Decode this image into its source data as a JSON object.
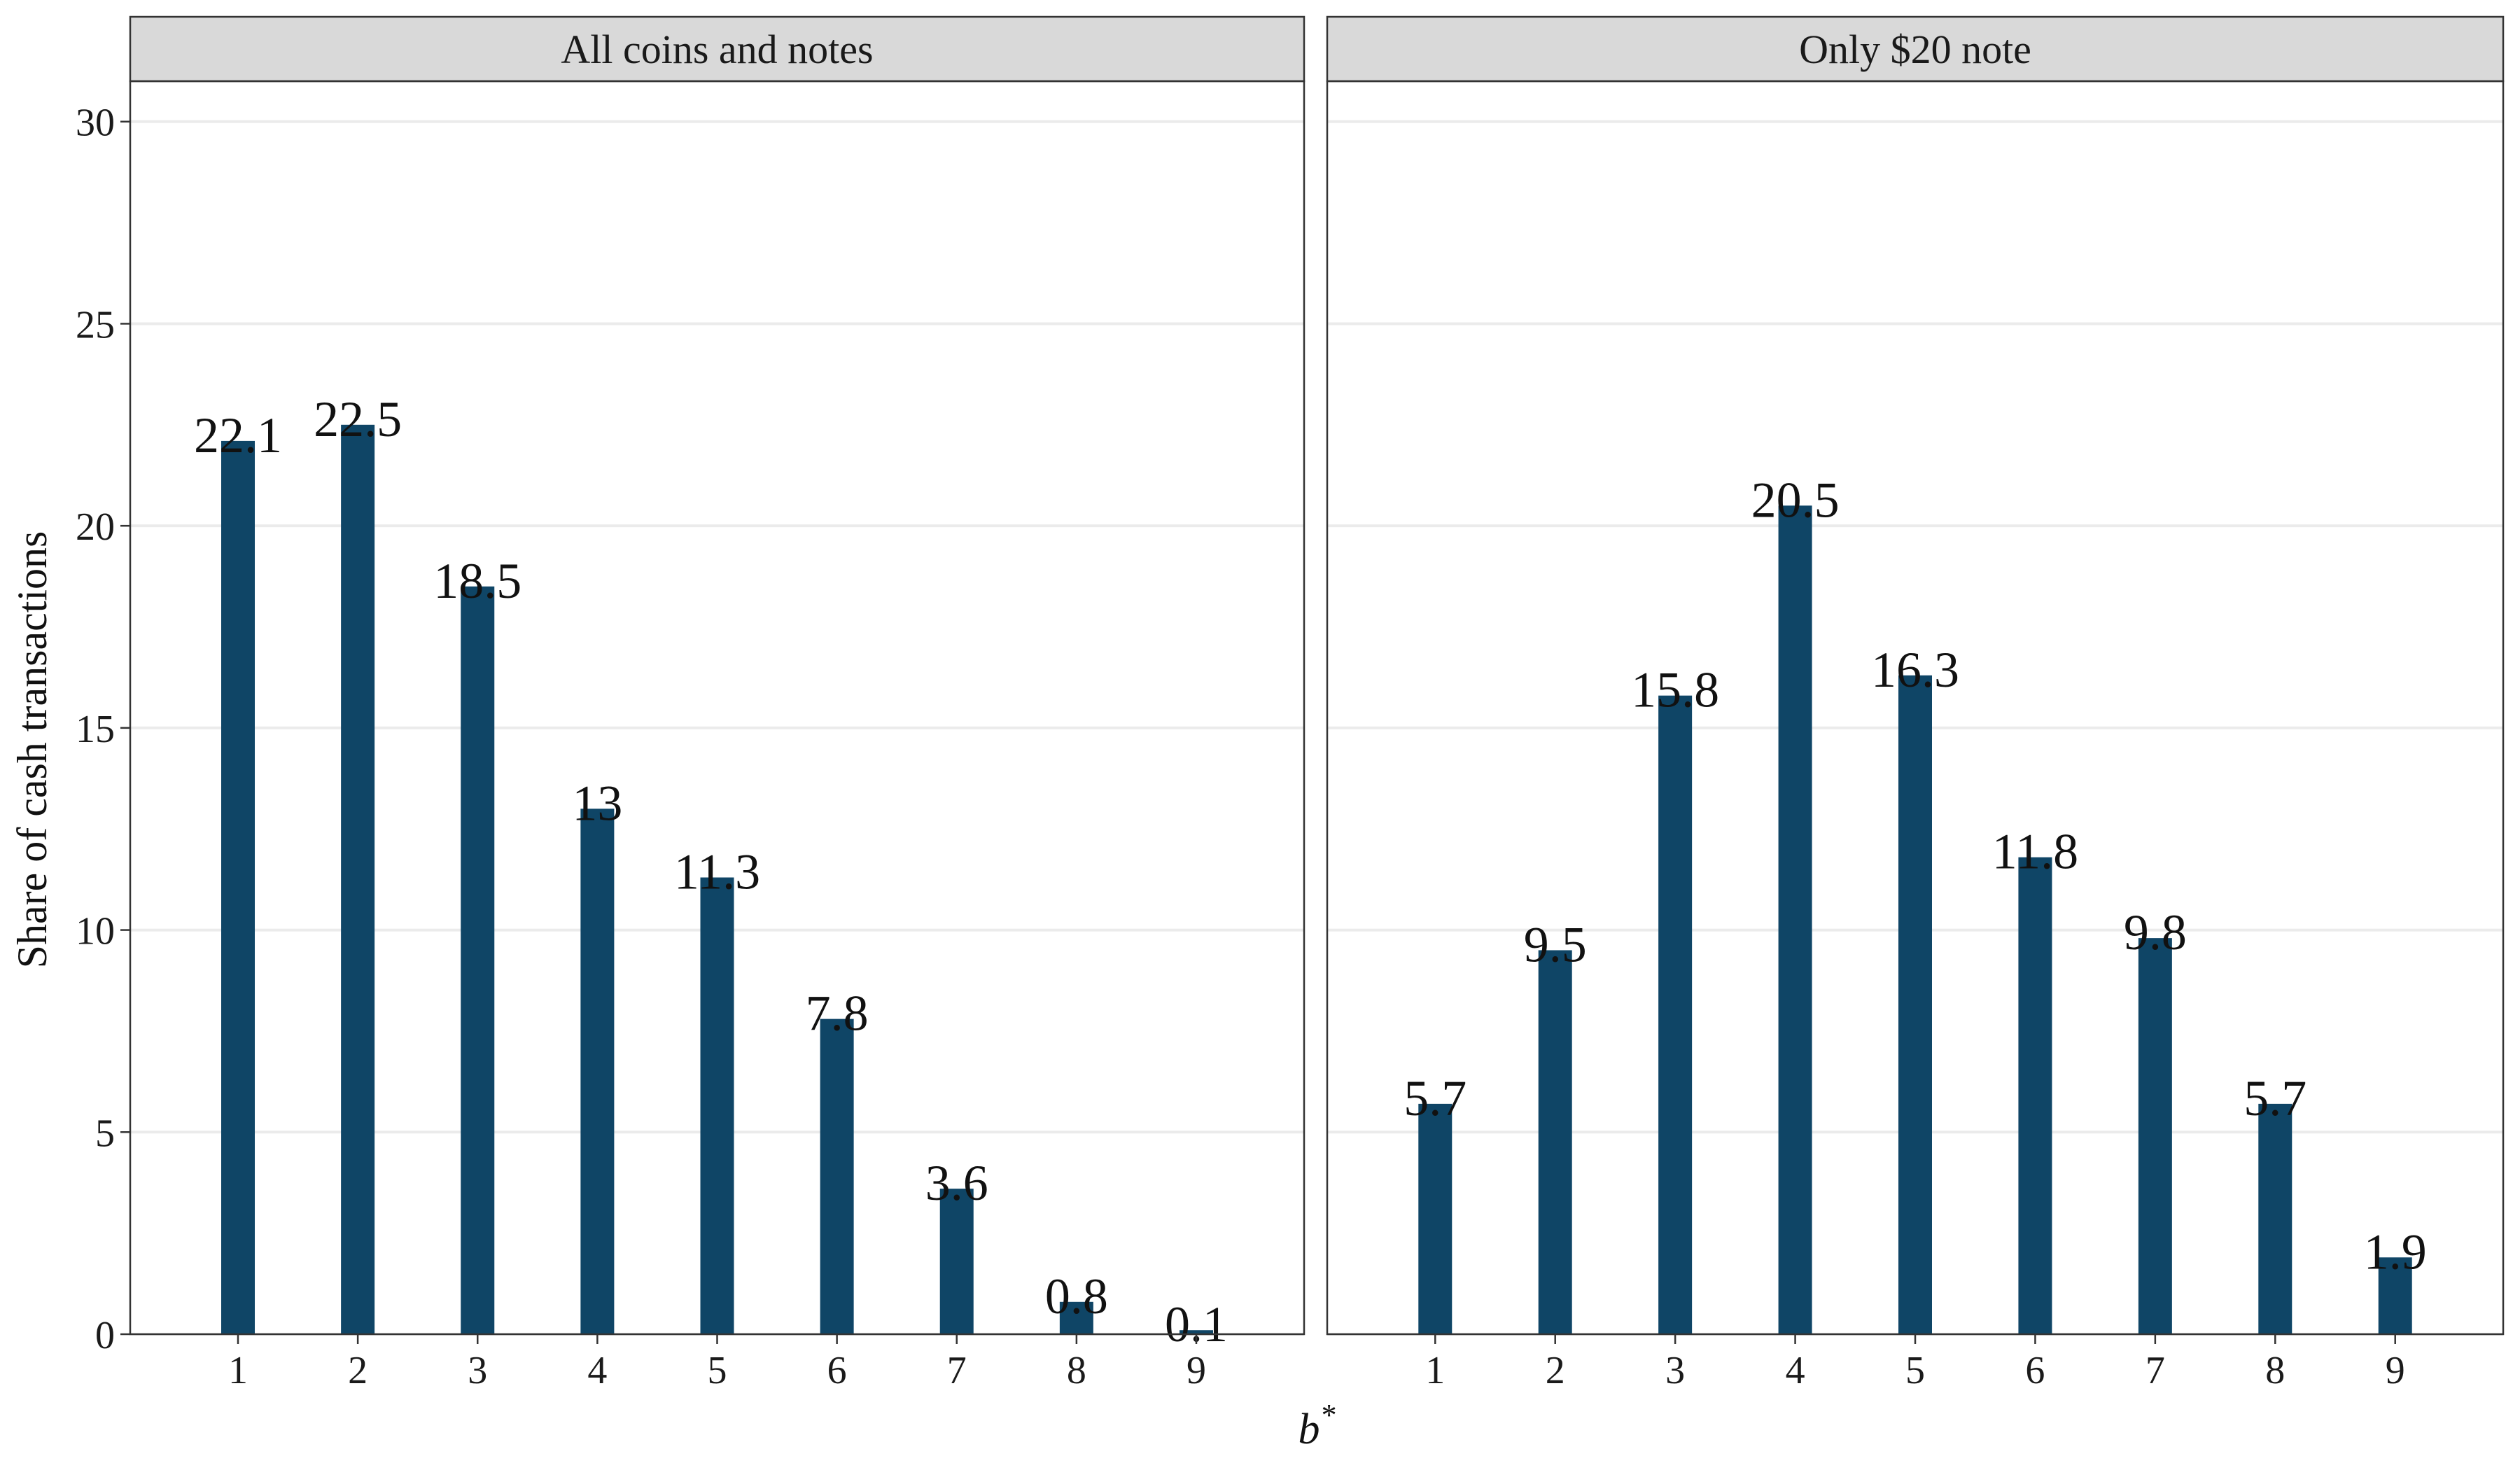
{
  "chart_data": {
    "type": "bar",
    "ylabel": "Share of cash transactions",
    "xlabel": "b",
    "xlabel_superscript": "*",
    "ylim": [
      0,
      31
    ],
    "yticks": [
      0,
      5,
      10,
      15,
      20,
      25,
      30
    ],
    "grid": true,
    "bar_color": "#0f4566",
    "facets": [
      {
        "title": "All coins and notes",
        "categories": [
          "1",
          "2",
          "3",
          "4",
          "5",
          "6",
          "7",
          "8",
          "9"
        ],
        "values": [
          22.1,
          22.5,
          18.5,
          13,
          11.3,
          7.8,
          3.6,
          0.8,
          0.1
        ],
        "labels": [
          "22.1",
          "22.5",
          "18.5",
          "13",
          "11.3",
          "7.8",
          "3.6",
          "0.8",
          "0.1"
        ]
      },
      {
        "title": "Only $20 note",
        "categories": [
          "1",
          "2",
          "3",
          "4",
          "5",
          "6",
          "7",
          "8",
          "9"
        ],
        "values": [
          5.7,
          9.5,
          15.8,
          20.5,
          16.3,
          11.8,
          9.8,
          5.7,
          1.9
        ],
        "labels": [
          "5.7",
          "9.5",
          "15.8",
          "20.5",
          "16.3",
          "11.8",
          "9.8",
          "5.7",
          "1.9"
        ]
      }
    ]
  }
}
